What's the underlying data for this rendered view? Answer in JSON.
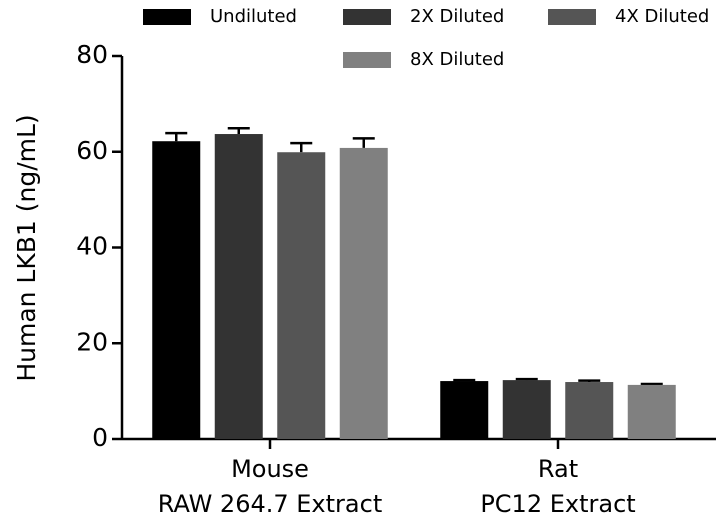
{
  "chart_data": {
    "type": "bar",
    "y_label": "Human LKB1 (ng/mL)",
    "categories": [
      [
        "Mouse",
        "RAW 264.7 Extract"
      ],
      [
        "Rat",
        "PC12 Extract"
      ]
    ],
    "series": [
      {
        "name": "Undiluted",
        "color": "#000000",
        "values": [
          62.2,
          12.1
        ],
        "errors": [
          1.7,
          0.2
        ]
      },
      {
        "name": "2X Diluted",
        "color": "#333333",
        "values": [
          63.7,
          12.3
        ],
        "errors": [
          1.2,
          0.2
        ]
      },
      {
        "name": "4X Diluted",
        "color": "#555555",
        "values": [
          59.9,
          11.9
        ],
        "errors": [
          1.9,
          0.3
        ]
      },
      {
        "name": "8X Diluted",
        "color": "#808080",
        "values": [
          60.8,
          11.3
        ],
        "errors": [
          2.0,
          0.2
        ]
      }
    ],
    "ylim": [
      0,
      80
    ],
    "yticks": [
      0,
      20,
      40,
      60,
      80
    ]
  }
}
